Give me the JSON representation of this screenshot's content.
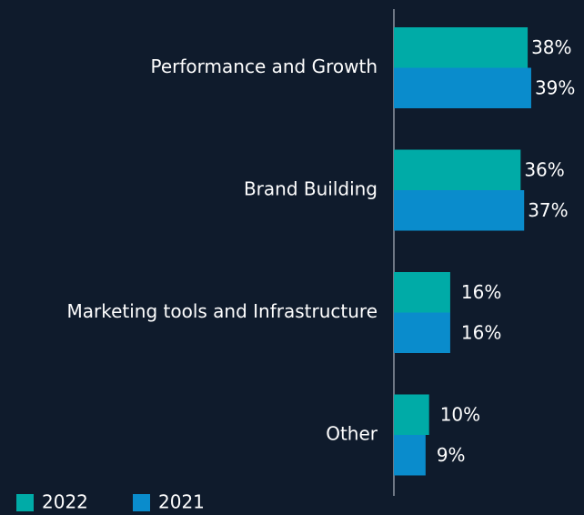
{
  "chart_data": {
    "type": "barh",
    "categories": [
      "Performance and Growth",
      "Brand Building",
      "Marketing tools and Infrastructure",
      "Other"
    ],
    "series": [
      {
        "name": "2022",
        "color": "#00aba7",
        "values": [
          38,
          36,
          16,
          10
        ],
        "value_labels": [
          "38%",
          "36%",
          "16%",
          "10%"
        ]
      },
      {
        "name": "2021",
        "color": "#0a8ccc",
        "values": [
          39,
          37,
          16,
          9
        ],
        "value_labels": [
          "39%",
          "37%",
          "16%",
          "9%"
        ]
      }
    ],
    "xlim": [
      0,
      54
    ]
  }
}
